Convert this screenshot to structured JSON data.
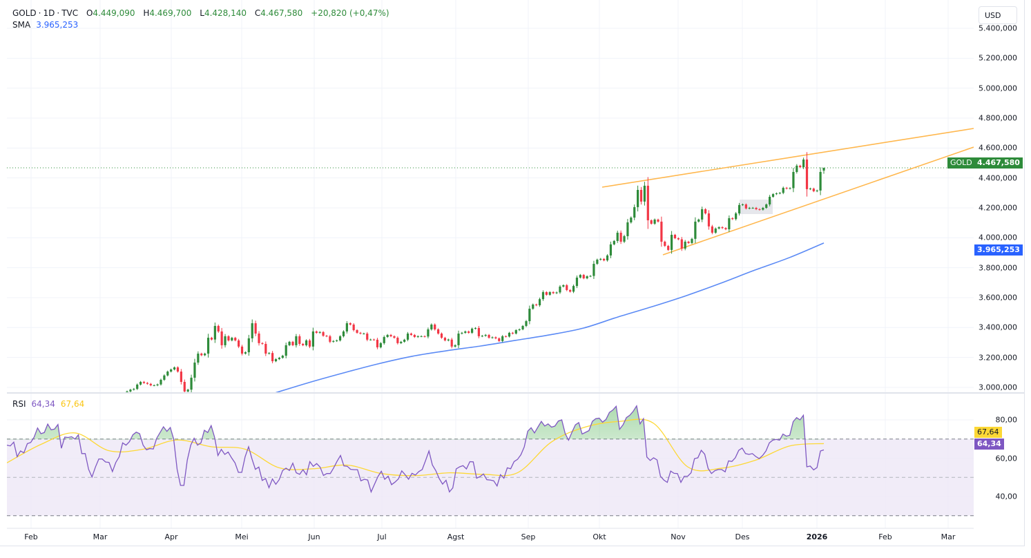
{
  "header": {
    "symbol": "GOLD",
    "interval": "1D",
    "exchange": "TVC",
    "separator": "·",
    "o_label": "O",
    "open": "4.449,090",
    "h_label": "H",
    "high": "4.469,700",
    "l_label": "L",
    "low": "4.428,140",
    "c_label": "C",
    "close": "4.467,580",
    "change": "+20,820 (+0,47%)"
  },
  "sma_legend": {
    "label": "SMA",
    "value": "3.965,253"
  },
  "currency_button": "USD",
  "price_axis": {
    "ticks": [
      "5.400,000",
      "5.200,000",
      "5.000,000",
      "4.800,000",
      "4.600,000",
      "4.400,000",
      "4.200,000",
      "4.000,000",
      "3.800,000",
      "3.600,000",
      "3.400,000",
      "3.200,000",
      "3.000,000"
    ]
  },
  "price_badge": {
    "symbol": "GOLD",
    "value": "4.467,580"
  },
  "sma_badge": "3.965,253",
  "rsi": {
    "label": "RSI",
    "value": "64,34",
    "ma_value": "67,64",
    "ticks": [
      "80,00",
      "60,00",
      "40,00"
    ]
  },
  "time_axis": [
    "Feb",
    "Mar",
    "Apr",
    "Mei",
    "Jun",
    "Jul",
    "Agst",
    "Sep",
    "Okt",
    "Nov",
    "Des",
    "2026",
    "Feb",
    "Mar"
  ],
  "colors": {
    "up": "#2e8b3a",
    "down": "#f23645",
    "sma": "#5b8af5",
    "trendline": "#ffb74d",
    "rsi": "#7e57c2",
    "rsi_ma": "#fdd835",
    "rsi_band": "#ede7f6",
    "price_line": "#2e8b3a"
  },
  "chart_data": [
    {
      "type": "candlestick",
      "title": "GOLD · 1D · TVC",
      "ylim": [
        3000,
        5400
      ],
      "x_ticks": [
        "Feb",
        "Mar",
        "Apr",
        "Mei",
        "Jun",
        "Jul",
        "Agst",
        "Sep",
        "Okt",
        "Nov",
        "Des",
        "2026",
        "Feb",
        "Mar"
      ],
      "last": {
        "open": 4449.09,
        "high": 4469.7,
        "low": 4428.14,
        "close": 4467.58
      },
      "close": [
        2973,
        2985,
        2990,
        3019,
        3037,
        3030,
        3024,
        3014,
        3014,
        3020,
        3051,
        3080,
        3106,
        3120,
        3134,
        3106,
        3037,
        2973,
        2985,
        3065,
        3166,
        3226,
        3215,
        3226,
        3332,
        3320,
        3411,
        3374,
        3282,
        3342,
        3314,
        3332,
        3314,
        3273,
        3226,
        3235,
        3328,
        3429,
        3360,
        3296,
        3291,
        3226,
        3230,
        3175,
        3189,
        3198,
        3212,
        3282,
        3305,
        3282,
        3342,
        3291,
        3282,
        3314,
        3273,
        3374,
        3365,
        3370,
        3345,
        3342,
        3305,
        3310,
        3314,
        3342,
        3374,
        3429,
        3420,
        3383,
        3365,
        3360,
        3360,
        3319,
        3320,
        3319,
        3268,
        3296,
        3337,
        3351,
        3342,
        3332,
        3296,
        3305,
        3319,
        3360,
        3351,
        3337,
        3342,
        3342,
        3340,
        3388,
        3420,
        3388,
        3360,
        3332,
        3314,
        3320,
        3273,
        3282,
        3360,
        3365,
        3374,
        3365,
        3393,
        3397,
        3342,
        3345,
        3351,
        3332,
        3335,
        3328,
        3310,
        3342,
        3340,
        3365,
        3360,
        3383,
        3388,
        3411,
        3443,
        3526,
        3554,
        3549,
        3590,
        3637,
        3619,
        3637,
        3630,
        3635,
        3674,
        3683,
        3651,
        3640,
        3678,
        3734,
        3752,
        3729,
        3743,
        3745,
        3826,
        3854,
        3859,
        3849,
        3882,
        3956,
        3979,
        4034,
        3974,
        4011,
        4103,
        4135,
        4205,
        4320,
        4242,
        4348,
        4117,
        4094,
        4122,
        4108,
        3974,
        3946,
        3919,
        4020,
        3997,
        3990,
        3928,
        3974,
        3965,
        3993,
        4108,
        4122,
        4191,
        4163,
        4076,
        4034,
        4062,
        4071,
        4065,
        4057,
        4131,
        4125,
        4163,
        4219,
        4223,
        4196,
        4200,
        4200,
        4191,
        4188,
        4200,
        4223,
        4274,
        4292,
        4297,
        4300,
        4334,
        4329,
        4332,
        4440,
        4482,
        4472,
        4523,
        4325,
        4329,
        4311,
        4316,
        4440,
        4467.58
      ],
      "sma": {
        "name": "SMA",
        "values": [
          2963,
          3033,
          3097,
          3157,
          3208,
          3245,
          3277,
          3314,
          3351,
          3397,
          3471,
          3540,
          3614,
          3697,
          3785,
          3868,
          3965.253
        ]
      }
    },
    {
      "type": "line",
      "title": "RSI",
      "ylim": [
        30,
        85
      ],
      "y_ticks": [
        80,
        60,
        40
      ],
      "bands": {
        "upper": 70,
        "middle": 50,
        "lower": 30
      },
      "rsi": [
        66.8,
        66.4,
        68.4,
        60.8,
        63.8,
        62.8,
        67.6,
        68.2,
        71,
        75.8,
        72.8,
        73.4,
        77.8,
        74.8,
        75.2,
        77.6,
        65.2,
        71,
        70.8,
        71.2,
        70,
        72.2,
        62.4,
        62.4,
        54.2,
        50.2,
        55.4,
        59.6,
        59.6,
        58,
        57.8,
        53,
        57.8,
        60.8,
        68,
        66.8,
        68.6,
        72.2,
        73.6,
        72.8,
        66.8,
        64.4,
        65,
        64.8,
        70.4,
        73.4,
        76.4,
        74,
        76,
        70,
        54.2,
        45.8,
        45.8,
        59,
        66.8,
        70.4,
        66.8,
        68,
        74.6,
        73.4,
        77,
        71,
        61.4,
        64.6,
        62,
        63.2,
        60.2,
        57.6,
        52.6,
        52.6,
        60.8,
        66,
        59.6,
        54.2,
        55.4,
        48.4,
        49.4,
        44.6,
        49.2,
        46.4,
        48.8,
        53.6,
        54.8,
        53.6,
        57.4,
        52.4,
        51.6,
        54,
        51.4,
        58.2,
        55.8,
        57.2,
        55.4,
        51,
        52,
        52,
        55,
        58.4,
        61.4,
        56,
        55.8,
        54.2,
        54,
        54,
        48.2,
        49,
        48.6,
        42.4,
        46.4,
        50.4,
        53.2,
        49,
        50.6,
        46.2,
        47.5,
        49.2,
        53.4,
        51.4,
        49,
        52.1,
        51.2,
        53,
        54.1,
        58.8,
        63.8,
        56.5,
        53.5,
        49.4,
        46.5,
        48.5,
        42.4,
        44.5,
        54.4,
        55.5,
        56.1,
        54.4,
        58.2,
        58.1,
        49.6,
        50.4,
        51.8,
        48.8,
        48.6,
        48.2,
        45.5,
        51.4,
        49.6,
        55,
        54.5,
        58.2,
        59.4,
        61.8,
        65.9,
        74.1,
        75.9,
        73.2,
        76.2,
        79.2,
        76.8,
        77.9,
        76.2,
        76.8,
        79.4,
        80,
        72.9,
        69.4,
        73.5,
        77.4,
        78.6,
        72.6,
        73.5,
        74.4,
        79.2,
        80.6,
        80.9,
        78.8,
        80.2,
        83.9,
        85.1,
        87.1,
        75.1,
        77.4,
        81.2,
        82.4,
        84.5,
        87.3,
        77.9,
        80.6,
        60.6,
        58.8,
        60.2,
        59.1,
        50.6,
        48.6,
        47.4,
        53.3,
        52.1,
        52,
        47.4,
        50.6,
        50.6,
        52.4,
        59.8,
        60.2,
        64.1,
        62.1,
        54.7,
        52,
        53.5,
        54.1,
        54.1,
        52.9,
        58.6,
        58.3,
        60.2,
        64.1,
        65.3,
        62.4,
        62,
        62.4,
        60.9,
        59.8,
        61.4,
        63.8,
        68,
        69.4,
        69.8,
        69.4,
        72.6,
        71.5,
        72,
        79.1,
        81.2,
        80,
        82.4,
        55.5,
        55.9,
        53.9,
        55.1,
        63.8,
        64.34
      ],
      "rsi_ma": [
        57.6,
        67.2,
        73.2,
        63.9,
        64.7,
        69.5,
        66,
        64.7,
        55,
        54.5,
        56.4,
        52,
        50.9,
        52.4,
        51.6,
        52.4,
        68.5,
        76.3,
        79.2,
        78.2,
        55.5,
        54.8,
        59,
        66.4,
        67.64
      ]
    }
  ]
}
